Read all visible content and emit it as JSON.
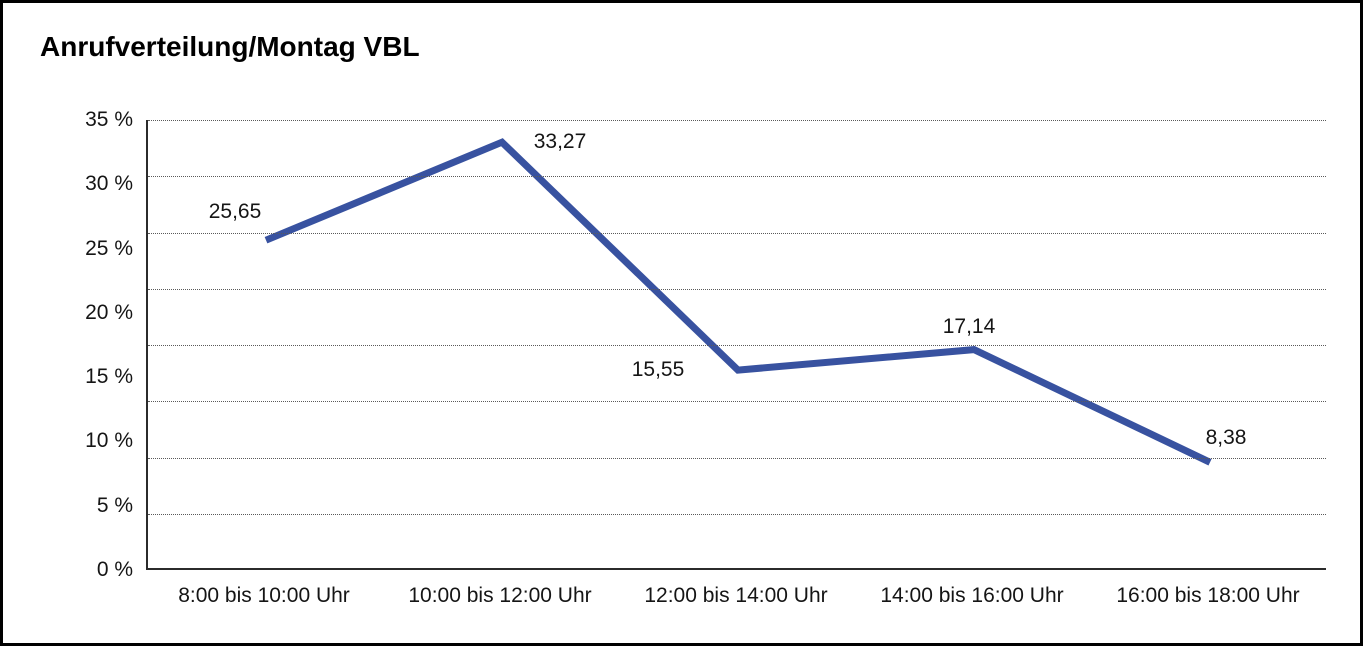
{
  "window": {
    "background": "#ffffff",
    "frame_color": "#000000"
  },
  "title": "Anrufverteilung/Montag VBL",
  "chart_data": {
    "type": "line",
    "title": "Anrufverteilung/Montag VBL",
    "categories": [
      "8:00 bis 10:00 Uhr",
      "10:00 bis 12:00 Uhr",
      "12:00 bis 14:00 Uhr",
      "14:00 bis 16:00 Uhr",
      "16:00 bis 18:00 Uhr"
    ],
    "values": [
      25.65,
      33.27,
      15.55,
      17.14,
      8.38
    ],
    "value_labels": [
      "25,65",
      "33,27",
      "15,55",
      "17,14",
      "8,38"
    ],
    "y_ticks": [
      {
        "value": 35,
        "label": "35 %"
      },
      {
        "value": 30,
        "label": "30 %"
      },
      {
        "value": 25,
        "label": "25 %"
      },
      {
        "value": 20,
        "label": "20 %"
      },
      {
        "value": 15,
        "label": "15 %"
      },
      {
        "value": 10,
        "label": "10 %"
      },
      {
        "value": 5,
        "label": "5 %"
      },
      {
        "value": 0,
        "label": "0 %"
      }
    ],
    "ylim": [
      0,
      35
    ],
    "xlabel": "",
    "ylabel": "",
    "legend": "none",
    "grid": "horizontal-dotted",
    "gridline_divisions": 8,
    "line_color": "#3852A0",
    "line_width": 7,
    "markers": "none"
  }
}
